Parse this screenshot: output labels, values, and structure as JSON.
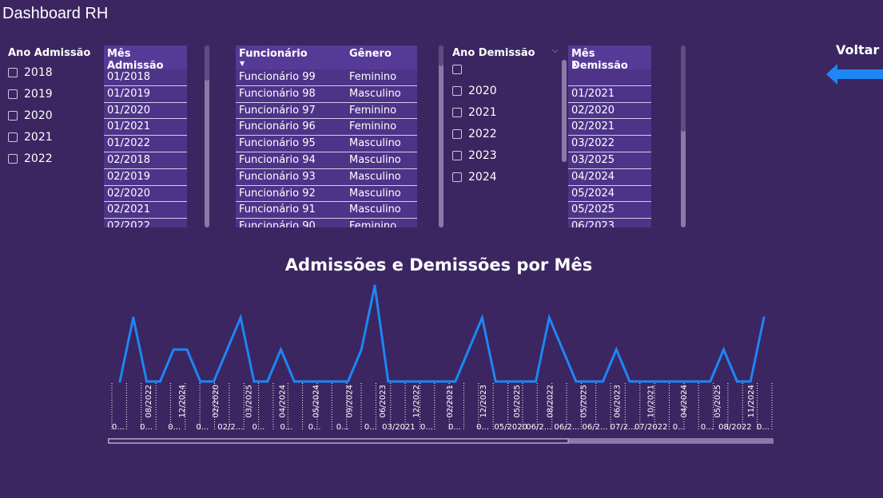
{
  "page": {
    "title": "Dashboard RH",
    "voltar_label": "Voltar",
    "colors": {
      "background": "#3b2661",
      "table_bg": "#4d3489",
      "line": "#1e86f5",
      "arrow": "#1e86f5"
    }
  },
  "ano_admissao": {
    "label": "Ano Admissão",
    "options": [
      "2018",
      "2019",
      "2020",
      "2021",
      "2022"
    ]
  },
  "mes_admissao": {
    "header": "Mês Admissão",
    "rows": [
      "01/2018",
      "01/2019",
      "01/2020",
      "01/2021",
      "01/2022",
      "02/2018",
      "02/2019",
      "02/2020",
      "02/2021",
      "02/2022"
    ]
  },
  "funcionarios": {
    "headers": [
      "Funcionário",
      "Gênero"
    ],
    "rows": [
      [
        "Funcionário 99",
        "Feminino"
      ],
      [
        "Funcionário 98",
        "Masculino"
      ],
      [
        "Funcionário 97",
        "Feminino"
      ],
      [
        "Funcionário 96",
        "Feminino"
      ],
      [
        "Funcionário 95",
        "Masculino"
      ],
      [
        "Funcionário 94",
        "Masculino"
      ],
      [
        "Funcionário 93",
        "Masculino"
      ],
      [
        "Funcionário 92",
        "Masculino"
      ],
      [
        "Funcionário 91",
        "Masculino"
      ],
      [
        "Funcionário 90",
        "Feminino"
      ]
    ]
  },
  "ano_demissao": {
    "label": "Ano Demissão",
    "options": [
      "",
      "2020",
      "2021",
      "2022",
      "2023",
      "2024"
    ]
  },
  "mes_demissao": {
    "header": "Mês Demissão",
    "rows": [
      "",
      "01/2021",
      "02/2020",
      "02/2021",
      "03/2022",
      "03/2025",
      "04/2024",
      "05/2024",
      "05/2025",
      "06/2023"
    ]
  },
  "chart": {
    "title": "Admissões e Demissões por Mês",
    "rotated_ticks": [
      "08/2022",
      "12/2024",
      "02/2020",
      "03/2025",
      "04/2024",
      "05/2024",
      "09/2024",
      "06/2023",
      "12/2022",
      "02/2021",
      "12/2023",
      "05/2025",
      "08/2022",
      "05/2025",
      "06/2023",
      "10/2021",
      "04/2024",
      "05/2025",
      "11/2024"
    ],
    "bottom_ticks": [
      "0...",
      "0...",
      "0...",
      "0...",
      "02/2...",
      "0...",
      "0...",
      "0...",
      "0...",
      "0...",
      "03/2021",
      "0...",
      "0...",
      "0...",
      "05/2020",
      "06/2...",
      "06/2...",
      "06/2...",
      "07/2...",
      "07/2022",
      "0...",
      "0...",
      "08/2022",
      "0..."
    ]
  },
  "chart_data": {
    "type": "line",
    "title": "Admissões e Demissões por Mês",
    "series": [
      {
        "values": [
          1,
          3,
          1,
          1,
          2,
          2,
          1,
          1,
          2,
          3,
          1,
          1,
          2,
          1,
          1,
          1,
          1,
          1,
          2,
          4,
          1,
          1,
          1,
          1,
          1,
          1,
          2,
          3,
          1,
          1,
          1,
          1,
          3,
          2,
          1,
          1,
          1,
          2,
          1,
          1,
          1,
          1,
          1,
          1,
          1,
          2,
          1,
          1,
          3
        ]
      }
    ]
  }
}
